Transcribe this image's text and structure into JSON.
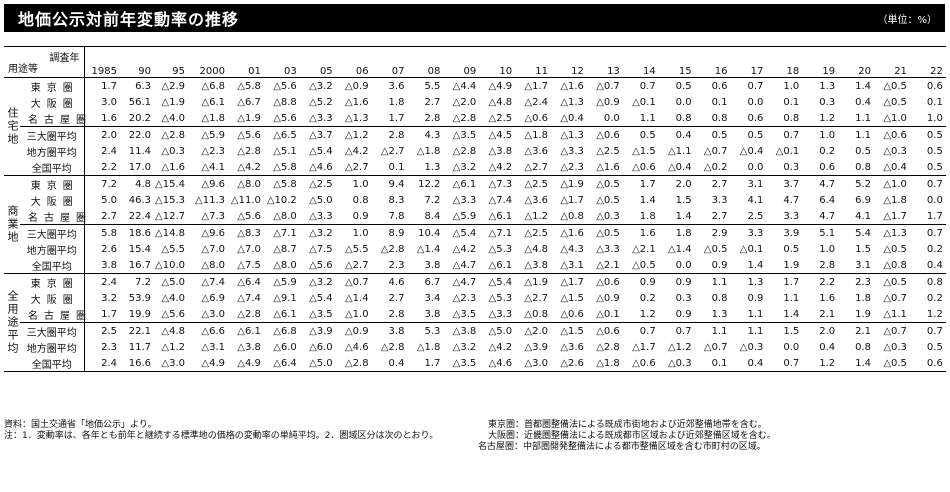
{
  "title": "地価公示対前年変動率の推移",
  "unit": "（単位：%）",
  "corner": {
    "top": "調査年",
    "bottom": "用途等"
  },
  "years": [
    "1985",
    "90",
    "95",
    "2000",
    "01",
    "03",
    "05",
    "06",
    "07",
    "08",
    "09",
    "10",
    "11",
    "12",
    "13",
    "14",
    "15",
    "16",
    "17",
    "18",
    "19",
    "20",
    "21",
    "22"
  ],
  "groups": [
    {
      "category": "住宅地",
      "rows": [
        {
          "region": "東京圏",
          "values": [
            "1.7",
            "6.3",
            "△2.9",
            "△6.8",
            "△5.8",
            "△5.6",
            "△3.2",
            "△0.9",
            "3.6",
            "5.5",
            "△4.4",
            "△4.9",
            "△1.7",
            "△1.6",
            "△0.7",
            "0.7",
            "0.5",
            "0.6",
            "0.7",
            "1.0",
            "1.3",
            "1.4",
            "△0.5",
            "0.6"
          ]
        },
        {
          "region": "大阪圏",
          "values": [
            "3.0",
            "56.1",
            "△1.9",
            "△6.1",
            "△6.7",
            "△8.8",
            "△5.2",
            "△1.6",
            "1.8",
            "2.7",
            "△2.0",
            "△4.8",
            "△2.4",
            "△1.3",
            "△0.9",
            "△0.1",
            "0.0",
            "0.1",
            "0.0",
            "0.1",
            "0.3",
            "0.4",
            "△0.5",
            "0.1"
          ]
        },
        {
          "region": "名古屋圏",
          "values": [
            "1.6",
            "20.2",
            "△4.0",
            "△1.8",
            "△1.9",
            "△5.6",
            "△3.3",
            "△1.3",
            "1.7",
            "2.8",
            "△2.8",
            "△2.5",
            "△0.6",
            "△0.4",
            "0.0",
            "1.1",
            "0.8",
            "0.8",
            "0.6",
            "0.8",
            "1.2",
            "1.1",
            "△1.0",
            "1.0"
          ]
        },
        {
          "region": "三大圏平均",
          "values": [
            "2.0",
            "22.0",
            "△2.8",
            "△5.9",
            "△5.6",
            "△6.5",
            "△3.7",
            "△1.2",
            "2.8",
            "4.3",
            "△3.5",
            "△4.5",
            "△1.8",
            "△1.3",
            "△0.6",
            "0.5",
            "0.4",
            "0.5",
            "0.5",
            "0.7",
            "1.0",
            "1.1",
            "△0.6",
            "0.5"
          ]
        },
        {
          "region": "地方圏平均",
          "values": [
            "2.4",
            "11.4",
            "△0.3",
            "△2.3",
            "△2.8",
            "△5.1",
            "△5.4",
            "△4.2",
            "△2.7",
            "△1.8",
            "△2.8",
            "△3.8",
            "△3.6",
            "△3.3",
            "△2.5",
            "△1.5",
            "△1.1",
            "△0.7",
            "△0.4",
            "△0.1",
            "0.2",
            "0.5",
            "△0.3",
            "0.5"
          ]
        },
        {
          "region": "全国平均",
          "values": [
            "2.2",
            "17.0",
            "△1.6",
            "△4.1",
            "△4.2",
            "△5.8",
            "△4.6",
            "△2.7",
            "0.1",
            "1.3",
            "△3.2",
            "△4.2",
            "△2.7",
            "△2.3",
            "△1.6",
            "△0.6",
            "△0.4",
            "△0.2",
            "0.0",
            "0.3",
            "0.6",
            "0.8",
            "△0.4",
            "0.5"
          ]
        }
      ]
    },
    {
      "category": "商業地",
      "rows": [
        {
          "region": "東京圏",
          "values": [
            "7.2",
            "4.8",
            "△15.4",
            "△9.6",
            "△8.0",
            "△5.8",
            "△2.5",
            "1.0",
            "9.4",
            "12.2",
            "△6.1",
            "△7.3",
            "△2.5",
            "△1.9",
            "△0.5",
            "1.7",
            "2.0",
            "2.7",
            "3.1",
            "3.7",
            "4.7",
            "5.2",
            "△1.0",
            "0.7"
          ]
        },
        {
          "region": "大阪圏",
          "values": [
            "5.0",
            "46.3",
            "△15.3",
            "△11.3",
            "△11.0",
            "△10.2",
            "△5.0",
            "0.8",
            "8.3",
            "7.2",
            "△3.3",
            "△7.4",
            "△3.6",
            "△1.7",
            "△0.5",
            "1.4",
            "1.5",
            "3.3",
            "4.1",
            "4.7",
            "6.4",
            "6.9",
            "△1.8",
            "0.0"
          ]
        },
        {
          "region": "名古屋圏",
          "values": [
            "2.7",
            "22.4",
            "△12.7",
            "△7.3",
            "△5.6",
            "△8.0",
            "△3.3",
            "0.9",
            "7.8",
            "8.4",
            "△5.9",
            "△6.1",
            "△1.2",
            "△0.8",
            "△0.3",
            "1.8",
            "1.4",
            "2.7",
            "2.5",
            "3.3",
            "4.7",
            "4.1",
            "△1.7",
            "1.7"
          ]
        },
        {
          "region": "三大圏平均",
          "values": [
            "5.8",
            "18.6",
            "△14.8",
            "△9.6",
            "△8.3",
            "△7.1",
            "△3.2",
            "1.0",
            "8.9",
            "10.4",
            "△5.4",
            "△7.1",
            "△2.5",
            "△1.6",
            "△0.5",
            "1.6",
            "1.8",
            "2.9",
            "3.3",
            "3.9",
            "5.1",
            "5.4",
            "△1.3",
            "0.7"
          ]
        },
        {
          "region": "地方圏平均",
          "values": [
            "2.6",
            "15.4",
            "△5.5",
            "△7.0",
            "△7.0",
            "△8.7",
            "△7.5",
            "△5.5",
            "△2.8",
            "△1.4",
            "△4.2",
            "△5.3",
            "△4.8",
            "△4.3",
            "△3.3",
            "△2.1",
            "△1.4",
            "△0.5",
            "△0.1",
            "0.5",
            "1.0",
            "1.5",
            "△0.5",
            "0.2"
          ]
        },
        {
          "region": "全国平均",
          "values": [
            "3.8",
            "16.7",
            "△10.0",
            "△8.0",
            "△7.5",
            "△8.0",
            "△5.6",
            "△2.7",
            "2.3",
            "3.8",
            "△4.7",
            "△6.1",
            "△3.8",
            "△3.1",
            "△2.1",
            "△0.5",
            "0.0",
            "0.9",
            "1.4",
            "1.9",
            "2.8",
            "3.1",
            "△0.8",
            "0.4"
          ]
        }
      ]
    },
    {
      "category": "全用途平均",
      "rows": [
        {
          "region": "東京圏",
          "values": [
            "2.4",
            "7.2",
            "△5.0",
            "△7.4",
            "△6.4",
            "△5.9",
            "△3.2",
            "△0.7",
            "4.6",
            "6.7",
            "△4.7",
            "△5.4",
            "△1.9",
            "△1.7",
            "△0.6",
            "0.9",
            "0.9",
            "1.1",
            "1.3",
            "1.7",
            "2.2",
            "2.3",
            "△0.5",
            "0.8"
          ]
        },
        {
          "region": "大阪圏",
          "values": [
            "3.2",
            "53.9",
            "△4.0",
            "△6.9",
            "△7.4",
            "△9.1",
            "△5.4",
            "△1.4",
            "2.7",
            "3.4",
            "△2.3",
            "△5.3",
            "△2.7",
            "△1.5",
            "△0.9",
            "0.2",
            "0.3",
            "0.8",
            "0.9",
            "1.1",
            "1.6",
            "1.8",
            "△0.7",
            "0.2"
          ]
        },
        {
          "region": "名古屋圏",
          "values": [
            "1.7",
            "19.9",
            "△5.6",
            "△3.0",
            "△2.8",
            "△6.1",
            "△3.5",
            "△1.0",
            "2.8",
            "3.8",
            "△3.5",
            "△3.3",
            "△0.8",
            "△0.6",
            "△0.1",
            "1.2",
            "0.9",
            "1.3",
            "1.1",
            "1.4",
            "2.1",
            "1.9",
            "△1.1",
            "1.2"
          ]
        },
        {
          "region": "三大圏平均",
          "values": [
            "2.5",
            "22.1",
            "△4.8",
            "△6.6",
            "△6.1",
            "△6.8",
            "△3.9",
            "△0.9",
            "3.8",
            "5.3",
            "△3.8",
            "△5.0",
            "△2.0",
            "△1.5",
            "△0.6",
            "0.7",
            "0.7",
            "1.1",
            "1.1",
            "1.5",
            "2.0",
            "2.1",
            "△0.7",
            "0.7"
          ]
        },
        {
          "region": "地方圏平均",
          "values": [
            "2.3",
            "11.7",
            "△1.2",
            "△3.1",
            "△3.8",
            "△6.0",
            "△6.0",
            "△4.6",
            "△2.8",
            "△1.8",
            "△3.2",
            "△4.2",
            "△3.9",
            "△3.6",
            "△2.8",
            "△1.7",
            "△1.2",
            "△0.7",
            "△0.3",
            "0.0",
            "0.4",
            "0.8",
            "△0.3",
            "0.5"
          ]
        },
        {
          "region": "全国平均",
          "values": [
            "2.4",
            "16.6",
            "△3.0",
            "△4.9",
            "△4.9",
            "△6.4",
            "△5.0",
            "△2.8",
            "0.4",
            "1.7",
            "△3.5",
            "△4.6",
            "△3.0",
            "△2.6",
            "△1.8",
            "△0.6",
            "△0.3",
            "0.1",
            "0.4",
            "0.7",
            "1.2",
            "1.4",
            "△0.5",
            "0.6"
          ]
        }
      ]
    }
  ],
  "notes": {
    "source": "資料：国土交通省「地価公示」より。",
    "note1": "注：1．変動率は、各年とも前年と継続する標準地の価格の変動率の単純平均。2．圏域区分は次のとおり。",
    "tokyo": "東京圏：首都圏整備法による既成市街地および近郊整備地帯を含む。",
    "osaka": "大阪圏：近畿圏整備法による既成都市区域および近郊整備区域を含む。",
    "nagoya": "名古屋圏：中部圏開発整備法による都市整備区域を含む市町村の区域。"
  }
}
